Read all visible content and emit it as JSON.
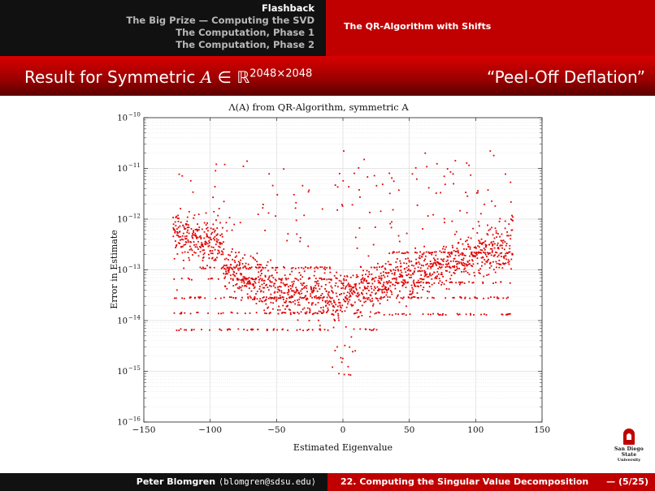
{
  "header": {
    "nav_items": [
      "Flashback",
      "The Big Prize — Computing the SVD",
      "The Computation, Phase 1",
      "The Computation, Phase 2"
    ],
    "current_index": 0,
    "section": "The QR-Algorithm with Shifts"
  },
  "slide": {
    "title_prefix": "Result for Symmetric ",
    "title_var": "A",
    "title_in": " ∈ ℝ",
    "title_sup": "2048×2048",
    "subtitle": "“Peel-Off Deflation”"
  },
  "logo": {
    "line1": "San Diego State",
    "line2": "University"
  },
  "footer": {
    "author": "Peter Blomgren",
    "email": "⟨blomgren@sdsu.edu⟩",
    "lecture": "22. Computing the Singular Value Decomposition",
    "page": "— (5/25)"
  },
  "colors": {
    "marker": "#e00000",
    "banner_red": "#c00000",
    "banner_dark": "#111111"
  },
  "chart_data": {
    "type": "scatter",
    "title": "Λ(A) from QR-Algorithm, symmetric A",
    "xlabel": "Estimated Eigenvalue",
    "ylabel": "Error in Estimate",
    "xlim": [
      -150,
      150
    ],
    "ylim_log10": [
      -16,
      -10
    ],
    "yscale": "log",
    "grid": true,
    "x_ticks": [
      -150,
      -100,
      -50,
      0,
      50,
      100,
      150
    ],
    "x_tick_labels": [
      "−150",
      "−100",
      "−50",
      "0",
      "50",
      "100",
      "150"
    ],
    "y_ticks_log10": [
      -16,
      -15,
      -14,
      -13,
      -12,
      -11,
      -10
    ],
    "y_tick_labels": [
      "10",
      "10",
      "10",
      "10",
      "10",
      "10",
      "10"
    ],
    "y_tick_exponents": [
      "−16",
      "−15",
      "−14",
      "−13",
      "−12",
      "−11",
      "−10"
    ],
    "n_points": 2048,
    "x_range_of_points": [
      -128,
      128
    ],
    "sample_points": [
      {
        "x": 0.6,
        "y": 2.2e-11
      },
      {
        "x": 62,
        "y": 2e-11
      },
      {
        "x": 111,
        "y": 2.2e-11
      },
      {
        "x": -75,
        "y": 1.1e-11
      },
      {
        "x": 16,
        "y": 1.5e-11
      },
      {
        "x": -96,
        "y": 9e-12
      },
      {
        "x": -3,
        "y": 9e-16
      },
      {
        "x": 5,
        "y": 3e-15
      },
      {
        "x": 128,
        "y": 1.1e-12
      },
      {
        "x": -125,
        "y": 4e-14
      },
      {
        "x": -124,
        "y": 9e-13
      },
      {
        "x": 35,
        "y": 8e-12
      }
    ]
  }
}
